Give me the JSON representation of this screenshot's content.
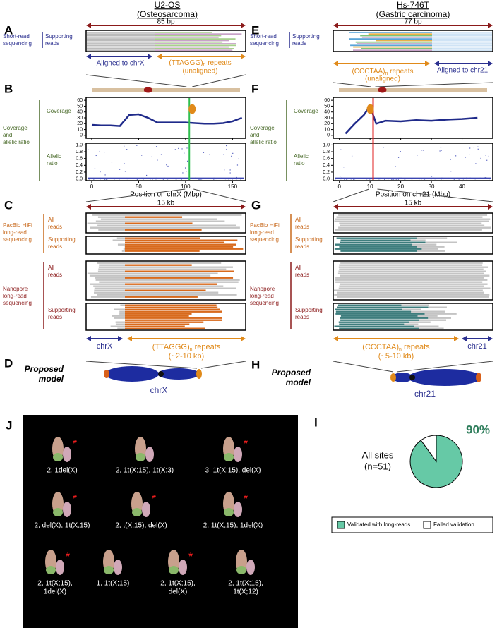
{
  "header": {
    "left_title": "U2-OS",
    "left_subtitle": "(Osteosarcoma)",
    "right_title": "Hs-746T",
    "right_subtitle": "(Gastric carcinoma)"
  },
  "panel_letters": [
    "A",
    "B",
    "C",
    "D",
    "E",
    "F",
    "G",
    "H",
    "I",
    "J"
  ],
  "left": {
    "short_read": {
      "span": "85 bp",
      "track": [
        "Short-read",
        "sequencing"
      ],
      "reads": [
        "Supporting",
        "reads"
      ],
      "aligned": "Aligned to chrX",
      "repeat_unit": "(TTAGGG)",
      "repeat_sub": "n",
      "repeat_rest": " repeats",
      "unaligned": "(unaligned)"
    },
    "group_label": [
      "Coverage",
      "and",
      "allelic ratio"
    ],
    "coverage_label": "Coverage",
    "allelic_label": [
      "Allelic",
      "ratio"
    ],
    "coverage": {
      "type": "line",
      "color": "#1f2a8a",
      "x": [
        0,
        10,
        20,
        30,
        40,
        50,
        60,
        70,
        80,
        90,
        100,
        110,
        120,
        130,
        140,
        150,
        160
      ],
      "values": [
        18,
        17,
        17,
        16,
        35,
        36,
        30,
        22,
        22,
        22,
        22,
        21,
        20,
        20,
        21,
        24,
        30
      ],
      "xlim": [
        -6,
        164
      ],
      "ylim": [
        -5,
        65
      ],
      "yticks": [
        0,
        10,
        20,
        30,
        40,
        50,
        60
      ],
      "xticks": [
        0,
        50,
        100,
        150
      ],
      "breakpoint": 104
    },
    "allelic": {
      "ylim": [
        -0.05,
        1.05
      ],
      "yticks": [
        {
          "value": 0,
          "label": "0.0"
        },
        {
          "value": 0.2,
          "label": "0.2"
        },
        {
          "value": 0.4,
          "label": "0.4"
        },
        {
          "value": 0.6,
          "label": "0.6"
        },
        {
          "value": 0.8,
          "label": "0.8"
        },
        {
          "value": 1,
          "label": "1.0"
        }
      ]
    },
    "xlabel": "Position on chrX (Mbp)",
    "long_read": {
      "span": "15 kb",
      "pacbio": [
        "PacBio HiFi",
        "long-read",
        "sequencing"
      ],
      "nanopore": [
        "Nanopore",
        "long-read",
        "sequencing"
      ],
      "all": [
        "All",
        "reads"
      ],
      "supporting": [
        "Supporting",
        "reads"
      ],
      "chrom": "chrX",
      "repeat_unit": "(TTAGGG)",
      "repeat_sub": "n",
      "repeat_rest": " repeats",
      "size": "(~2-10 kb)"
    },
    "model": {
      "title": [
        "Proposed",
        "model"
      ],
      "chrom": "chrX"
    }
  },
  "right": {
    "short_read": {
      "span": "77 bp",
      "track": [
        "Short-read",
        "sequencing"
      ],
      "reads": [
        "Supporting",
        "reads"
      ],
      "aligned": "Aligned to chr21",
      "repeat_unit": "(CCCTAA)",
      "repeat_sub": "n",
      "repeat_rest": " repeats",
      "unaligned": "(unaligned)"
    },
    "group_label": [
      "Coverage",
      "and",
      "allelic ratio"
    ],
    "coverage_label": "Coverage",
    "allelic_label": [
      "Allelic",
      "ratio"
    ],
    "coverage": {
      "type": "line",
      "color": "#1f2a8a",
      "x": [
        2,
        5,
        8,
        10,
        12,
        15,
        20,
        25,
        30,
        35,
        40,
        45
      ],
      "values": [
        3,
        20,
        35,
        50,
        20,
        25,
        24,
        26,
        25,
        27,
        28,
        30
      ],
      "xlim": [
        -2,
        50
      ],
      "ylim": [
        -5,
        65
      ],
      "yticks": [
        0,
        10,
        20,
        30,
        40,
        50,
        60
      ],
      "xticks": [
        0,
        10,
        20,
        30,
        40
      ],
      "breakpoint": 11
    },
    "allelic": {
      "ylim": [
        -0.05,
        1.05
      ],
      "yticks": [
        {
          "value": 0,
          "label": "0.0"
        },
        {
          "value": 0.2,
          "label": "0.2"
        },
        {
          "value": 0.4,
          "label": "0.4"
        },
        {
          "value": 0.6,
          "label": "0.6"
        },
        {
          "value": 0.8,
          "label": "0.8"
        },
        {
          "value": 1,
          "label": "1.0"
        }
      ]
    },
    "xlabel": "Position on chr21 (Mbp)",
    "long_read": {
      "span": "15 kb",
      "pacbio": [
        "PacBio HiFi",
        "long-read",
        "sequencing"
      ],
      "nanopore": [
        "Nanopore",
        "long-read",
        "sequencing"
      ],
      "all": [
        "All",
        "reads"
      ],
      "supporting": [
        "Supporting",
        "reads"
      ],
      "chrom": "chr21",
      "repeat_unit": "(CCCTAA)",
      "repeat_sub": "n",
      "repeat_rest": " repeats",
      "size": "(~5-10 kb)"
    },
    "model": {
      "title": [
        "Proposed",
        "model"
      ],
      "chrom": "chr21"
    }
  },
  "karyotypes": {
    "asterisk": "*",
    "labels": [
      [
        "2, 1del(X)"
      ],
      [
        "2, 1t(X;15), 1t(X;3)"
      ],
      [
        "3, 1t(X;15), del(X)"
      ],
      [
        "2, del(X), 1t(X;15)"
      ],
      [
        "2, t(X;15), del(X)"
      ],
      [
        "2, 1t(X;15), 1del(X)"
      ],
      [
        "2, 1t(X;15),",
        "1del(X)"
      ],
      [
        "1, 1t(X;15)"
      ],
      [
        "2, 1t(X;15),",
        "del(X)"
      ],
      [
        "2, 1t(X;15),",
        "1t(X;12)"
      ]
    ]
  },
  "pie": {
    "type": "pie",
    "categories": [
      "Validated with long-reads",
      "Failed validation"
    ],
    "values": [
      90,
      10
    ],
    "value_labels": [
      "90%",
      null
    ],
    "colors": [
      "#66c9a6",
      "#ffffff"
    ],
    "center_text": "All sites",
    "n_text": "(n=51)"
  }
}
